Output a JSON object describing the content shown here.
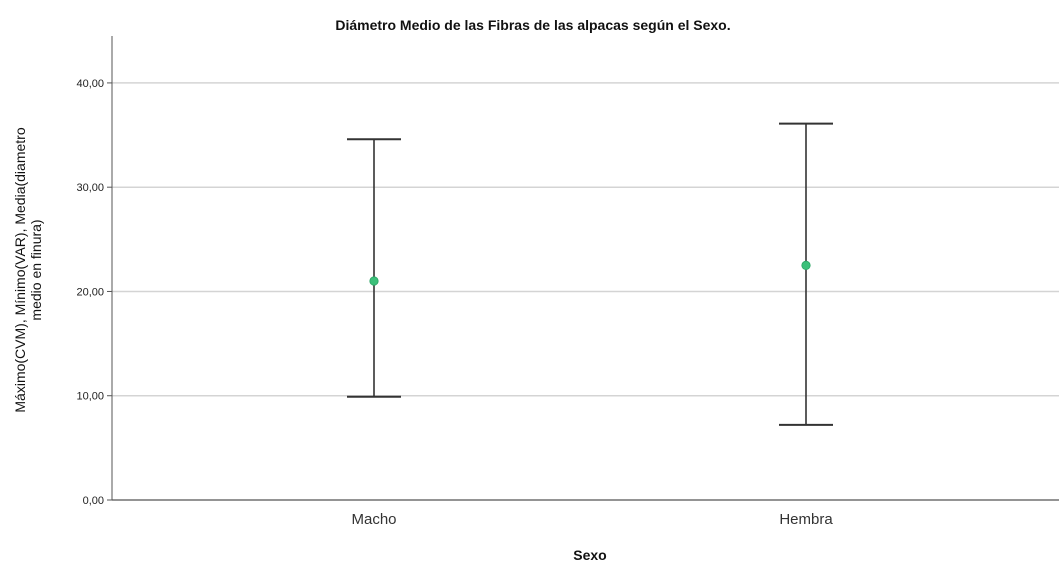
{
  "chart_data": {
    "type": "scatter",
    "title": "Diámetro Medio de las Fibras de las alpacas según el Sexo.",
    "xlabel": "Sexo",
    "ylabel_lines": [
      "Máximo(CVM), Mínimo(VAR), Media(diametro",
      "medio en finura)"
    ],
    "categories": [
      "Macho",
      "Hembra"
    ],
    "series": [
      {
        "name": "Máximo(CVM)",
        "values": [
          34.6,
          36.1
        ]
      },
      {
        "name": "Mínimo(VAR)",
        "values": [
          9.9,
          7.2
        ]
      },
      {
        "name": "Media(diametro medio en finura)",
        "values": [
          21.0,
          22.5
        ]
      }
    ],
    "ylim": [
      0,
      44.5
    ],
    "yticks": [
      0,
      10,
      20,
      30,
      40
    ],
    "ytick_labels": [
      "0,00",
      "10,00",
      "20,00",
      "30,00",
      "40,00"
    ],
    "grid": true,
    "colors": {
      "mean_point": "#3cc07a",
      "whisker": "#333333",
      "grid": "#d4d4d4",
      "axis": "#555555"
    }
  }
}
